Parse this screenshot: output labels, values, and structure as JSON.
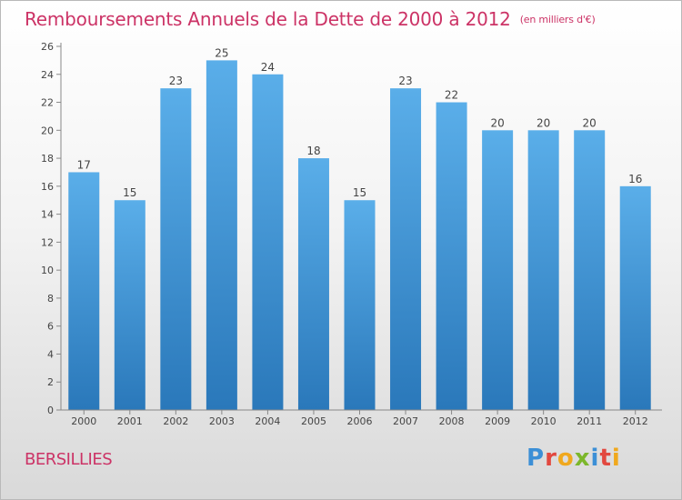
{
  "header": {
    "title": "Remboursements Annuels de la Dette de 2000 à 2012",
    "unit": "(en milliers d'€)"
  },
  "footer": {
    "commune": "BERSILLIES",
    "logo": "Proxiti"
  },
  "colors": {
    "title": "#cc3366",
    "bar_top": "#5aaee9",
    "bar_bottom": "#2a78ba"
  },
  "chart_data": {
    "type": "bar",
    "title": "Remboursements Annuels de la Dette de 2000 à 2012",
    "subtitle": "(en milliers d'€)",
    "xlabel": "",
    "ylabel": "",
    "categories": [
      "2000",
      "2001",
      "2002",
      "2003",
      "2004",
      "2005",
      "2006",
      "2007",
      "2008",
      "2009",
      "2010",
      "2011",
      "2012"
    ],
    "values": [
      17,
      15,
      23,
      25,
      24,
      18,
      15,
      23,
      22,
      20,
      20,
      20,
      16
    ],
    "ylim": [
      0,
      26
    ],
    "yticks": [
      0,
      2,
      4,
      6,
      8,
      10,
      12,
      14,
      16,
      18,
      20,
      22,
      24,
      26
    ],
    "grid": false,
    "data_labels": true
  }
}
